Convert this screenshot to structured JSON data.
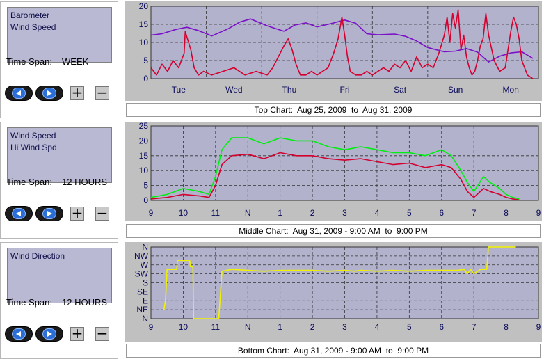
{
  "panels": [
    {
      "list_items": [
        "Barometer",
        "Wind Speed"
      ],
      "timespan_label": "Time Span:",
      "timespan_value": "WEEK",
      "caption": "Top Chart:  Aug 25, 2009  to  Aug 31, 2009"
    },
    {
      "list_items": [
        "Wind Speed",
        "Hi Wind Spd"
      ],
      "timespan_label": "Time Span:",
      "timespan_value": "12 HOURS",
      "caption": "Middle Chart:  Aug 31, 2009 - 9:00 AM  to  9:00 PM"
    },
    {
      "list_items": [
        "Wind Direction"
      ],
      "timespan_label": "Time Span:",
      "timespan_value": "12 HOURS",
      "caption": "Bottom Chart:  Aug 31, 2009 - 9:00 AM  to  9:00 PM"
    }
  ],
  "controls": {
    "back_icon": "rewind-icon",
    "forward_icon": "play-icon",
    "zoom_in_label": "+",
    "zoom_out_label": "−"
  },
  "colors": {
    "plot_background": "#b2b2cc",
    "frame": "#c0c0c0",
    "barometer": "#7b10c8",
    "wind_speed": "#d4002e",
    "hi_wind": "#00ee10",
    "wind_direction": "#f2f200",
    "tick_text": "#0a0a5c"
  },
  "chart_data": [
    {
      "type": "line",
      "ylim": [
        0,
        20
      ],
      "yticks": [
        "0",
        "5",
        "10",
        "15",
        "20"
      ],
      "xlim": [
        0,
        7
      ],
      "xticks": [
        {
          "label": "Tue",
          "x": 0.5
        },
        {
          "label": "Wed",
          "x": 1.5
        },
        {
          "label": "Thu",
          "x": 2.5
        },
        {
          "label": "Fri",
          "x": 3.5
        },
        {
          "label": "Sat",
          "x": 4.5
        },
        {
          "label": "Sun",
          "x": 5.5
        },
        {
          "label": "Mon",
          "x": 6.5
        }
      ],
      "grid": true,
      "series": [
        {
          "name": "Barometer",
          "color_key": "barometer",
          "x": [
            0,
            0.2,
            0.45,
            0.65,
            0.85,
            1.1,
            1.4,
            1.6,
            1.8,
            2.1,
            2.4,
            2.6,
            2.8,
            3.0,
            3.25,
            3.5,
            3.7,
            3.9,
            4.1,
            4.4,
            4.6,
            4.8,
            5.0,
            5.3,
            5.5,
            5.7,
            5.9,
            6.1,
            6.3,
            6.5,
            6.7,
            6.9
          ],
          "y": [
            12,
            12.4,
            13.6,
            14.2,
            13.3,
            11.8,
            13.8,
            15.6,
            16.5,
            14.6,
            13.1,
            14.8,
            15.4,
            14.3,
            15.2,
            16.2,
            15.3,
            12.4,
            12.1,
            12.3,
            11.7,
            10.4,
            8.6,
            7.4,
            7.6,
            8.3,
            7.3,
            4.6,
            6.2,
            7.1,
            7.4,
            5.6
          ]
        },
        {
          "name": "Wind Speed",
          "color_key": "wind_speed",
          "x": [
            0,
            0.1,
            0.2,
            0.3,
            0.4,
            0.5,
            0.6,
            0.62,
            0.66,
            0.72,
            0.78,
            0.86,
            0.95,
            1.1,
            1.3,
            1.5,
            1.7,
            1.9,
            2.1,
            2.2,
            2.3,
            2.4,
            2.48,
            2.55,
            2.62,
            2.7,
            2.8,
            2.9,
            3.0,
            3.1,
            3.2,
            3.3,
            3.38,
            3.45,
            3.5,
            3.55,
            3.6,
            3.7,
            3.8,
            3.9,
            4.0,
            4.1,
            4.2,
            4.3,
            4.4,
            4.5,
            4.6,
            4.7,
            4.8,
            4.9,
            5.0,
            5.1,
            5.2,
            5.3,
            5.35,
            5.4,
            5.45,
            5.5,
            5.55,
            5.6,
            5.65,
            5.7,
            5.75,
            5.8,
            5.85,
            5.9,
            5.95,
            6.0,
            6.05,
            6.1,
            6.2,
            6.3,
            6.4,
            6.5,
            6.55,
            6.6,
            6.65,
            6.7,
            6.75,
            6.8,
            6.9
          ],
          "y": [
            3,
            1,
            4,
            2,
            5,
            3,
            7,
            13,
            11,
            8,
            3,
            1,
            2,
            1,
            2,
            3,
            1,
            2,
            1,
            3,
            6,
            9,
            11,
            8,
            4,
            1,
            1,
            2,
            1,
            2,
            3,
            7,
            11,
            17,
            12,
            6,
            2,
            1,
            1,
            2,
            1,
            2,
            3,
            2,
            4,
            3,
            5,
            2,
            6,
            3,
            4,
            3,
            7,
            12,
            17,
            10,
            18,
            14,
            19,
            8,
            12,
            6,
            3,
            1,
            2,
            5,
            9,
            11,
            18,
            12,
            5,
            2,
            3,
            13,
            17,
            15,
            11,
            5,
            3,
            1,
            0
          ]
        }
      ]
    },
    {
      "type": "line",
      "ylim": [
        0,
        25
      ],
      "yticks": [
        "0",
        "5",
        "10",
        "15",
        "20",
        "25"
      ],
      "xlim": [
        0,
        12
      ],
      "xticks": [
        "9",
        "10",
        "11",
        "N",
        "1",
        "2",
        "3",
        "4",
        "5",
        "6",
        "7",
        "8",
        "9"
      ],
      "grid": true,
      "series": [
        {
          "name": "Wind Speed",
          "color_key": "wind_speed",
          "x": [
            0,
            0.5,
            1,
            1.5,
            1.8,
            2,
            2.2,
            2.5,
            3,
            3.5,
            4,
            4.5,
            5,
            5.5,
            6,
            6.5,
            7,
            7.5,
            8,
            8.5,
            9,
            9.3,
            9.6,
            9.8,
            10,
            10.3,
            10.5,
            10.8,
            11,
            11.2,
            11.4
          ],
          "y": [
            0.5,
            1,
            2,
            1.5,
            1,
            5,
            12,
            15,
            15.5,
            14,
            16,
            15,
            15,
            14,
            13.5,
            14,
            13,
            12,
            12.5,
            11,
            12,
            11,
            7,
            3,
            1,
            4,
            3,
            2,
            1,
            0.5,
            0.2
          ]
        },
        {
          "name": "Hi Wind Spd",
          "color_key": "hi_wind",
          "x": [
            0,
            0.5,
            1,
            1.5,
            1.8,
            2,
            2.2,
            2.5,
            3,
            3.5,
            4,
            4.5,
            5,
            5.5,
            6,
            6.5,
            7,
            7.5,
            8,
            8.5,
            9,
            9.3,
            9.6,
            9.8,
            10,
            10.3,
            10.5,
            10.8,
            11,
            11.2,
            11.4
          ],
          "y": [
            1,
            2,
            4,
            3,
            2,
            8,
            17,
            21,
            21,
            19,
            21,
            20,
            20,
            18,
            17,
            18,
            17,
            16,
            16,
            15,
            17,
            15,
            10,
            6,
            3,
            8,
            6,
            4,
            2,
            1,
            0.5
          ]
        }
      ]
    },
    {
      "type": "line",
      "ylim": [
        0,
        8
      ],
      "yticks": [
        "N",
        "NE",
        "E",
        "SE",
        "S",
        "SW",
        "W",
        "NW",
        "N"
      ],
      "xlim": [
        0,
        12
      ],
      "xticks": [
        "9",
        "10",
        "11",
        "N",
        "1",
        "2",
        "3",
        "4",
        "5",
        "6",
        "7",
        "8",
        "9"
      ],
      "grid": true,
      "series": [
        {
          "name": "Wind Direction",
          "color_key": "wind_direction",
          "x": [
            0.4,
            0.45,
            0.5,
            0.6,
            0.8,
            0.82,
            1.2,
            1.22,
            1.3,
            1.32,
            1.8,
            1.85,
            2.0,
            2.1,
            2.2,
            2.5,
            3,
            3.5,
            4,
            4.5,
            5,
            5.5,
            6,
            6.3,
            6.5,
            7,
            7.5,
            8,
            8.5,
            9,
            9.5,
            9.7,
            9.8,
            9.9,
            10,
            10.2,
            10.4,
            10.45,
            10.6,
            11.0,
            11.3
          ],
          "y": [
            1,
            2,
            5.5,
            5.5,
            5.5,
            6.5,
            6.5,
            5.8,
            5.8,
            0,
            0,
            0,
            0,
            0,
            5.3,
            5.5,
            5.4,
            5.3,
            5.4,
            5.4,
            5.4,
            5.3,
            5.4,
            5.3,
            5.4,
            5.3,
            5.4,
            5.3,
            5.4,
            5.4,
            5.4,
            5.5,
            5.0,
            5.5,
            5.0,
            5.5,
            5.5,
            8,
            8,
            8,
            8
          ]
        }
      ]
    }
  ]
}
